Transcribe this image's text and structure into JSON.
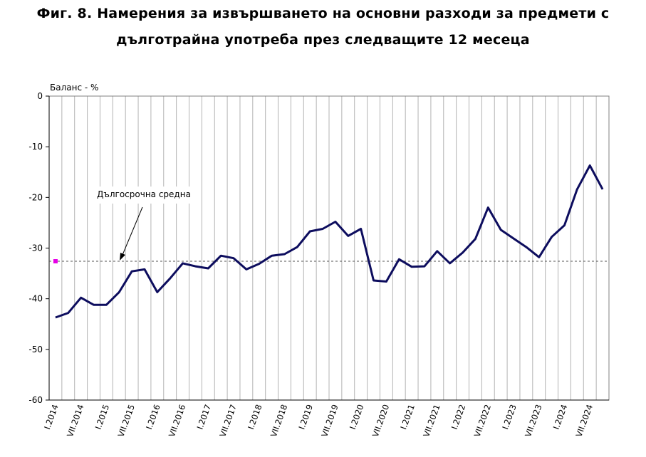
{
  "title": {
    "line1": "Фиг. 8. Намерения за извършването на основни разходи за предмети с",
    "line2": "дълготрайна употреба през следващите 12 месеца"
  },
  "chart_data": {
    "type": "line",
    "ylabel": "Баланс - %",
    "ylim": [
      -60,
      0
    ],
    "yticks": [
      0,
      -10,
      -20,
      -30,
      -40,
      -50,
      -60
    ],
    "xtick_labels": [
      "I.2014",
      "VII.2014",
      "I.2015",
      "VII.2015",
      "I.2016",
      "VII.2016",
      "I.2017",
      "VII.2017",
      "I.2018",
      "VII.2018",
      "I.2019",
      "VII.2019",
      "I.2020",
      "VII.2020",
      "I.2021",
      "VII.2021",
      "I.2022",
      "VII.2022",
      "I.2023",
      "VII.2023",
      "I.2024",
      "VII.2024"
    ],
    "x": [
      "I.2014",
      "IV.2014",
      "VII.2014",
      "X.2014",
      "I.2015",
      "IV.2015",
      "VII.2015",
      "X.2015",
      "I.2016",
      "IV.2016",
      "VII.2016",
      "X.2016",
      "I.2017",
      "IV.2017",
      "VII.2017",
      "X.2017",
      "I.2018",
      "IV.2018",
      "VII.2018",
      "X.2018",
      "I.2019",
      "IV.2019",
      "VII.2019",
      "X.2019",
      "I.2020",
      "IV.2020",
      "VII.2020",
      "X.2020",
      "I.2021",
      "IV.2021",
      "VII.2021",
      "X.2021",
      "I.2022",
      "IV.2022",
      "VII.2022",
      "X.2022",
      "I.2023",
      "IV.2023",
      "VII.2023",
      "X.2023",
      "I.2024",
      "IV.2024",
      "VII.2024",
      "X.2024"
    ],
    "series": [
      {
        "values": [
          -43.7,
          -42.8,
          -39.8,
          -41.2,
          -41.2,
          -38.7,
          -34.6,
          -34.2,
          -38.7,
          -36.0,
          -33.0,
          -33.6,
          -34.0,
          -31.5,
          -32.0,
          -34.2,
          -33.1,
          -31.5,
          -31.2,
          -29.8,
          -26.7,
          -26.2,
          -24.8,
          -27.6,
          -26.2,
          -36.4,
          -36.6,
          -32.2,
          -33.7,
          -33.6,
          -30.6,
          -33.0,
          -30.9,
          -28.2,
          -22.0,
          -26.4,
          -28.1,
          -29.8,
          -31.8,
          -27.8,
          -25.5,
          -18.4,
          -13.7,
          -18.4
        ]
      }
    ],
    "long_term_average": -32.6,
    "annotation": "Дългосрочна средна",
    "grid": "vertical",
    "colors": {
      "line": "#0d0d5e",
      "average": "#555555",
      "marker": "#e600e6",
      "grid": "#b3b3b3"
    }
  }
}
